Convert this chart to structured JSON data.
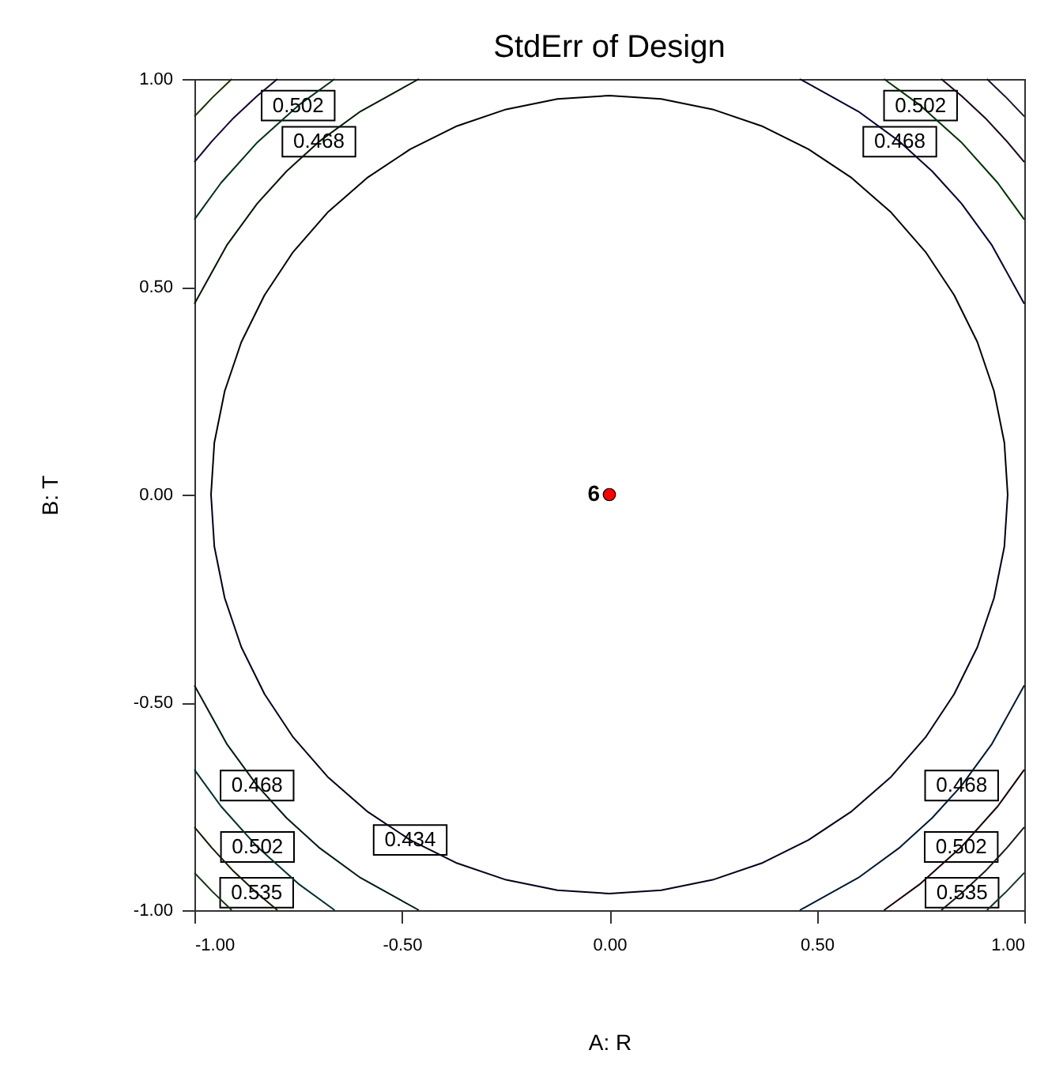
{
  "chart_data": {
    "type": "line",
    "title": "StdErr of Design",
    "xlabel": "A: R",
    "ylabel": "B: T",
    "xlim": [
      -1,
      1
    ],
    "ylim": [
      -1,
      1
    ],
    "xticks": [
      {
        "value": -1,
        "label": "-1.00"
      },
      {
        "value": -0.5,
        "label": "-0.50"
      },
      {
        "value": 0,
        "label": "0.00"
      },
      {
        "value": 0.5,
        "label": "0.50"
      },
      {
        "value": 1,
        "label": "1.00"
      }
    ],
    "yticks": [
      {
        "value": -1,
        "label": "-1.00"
      },
      {
        "value": -0.5,
        "label": "-0.50"
      },
      {
        "value": 0,
        "label": "0.00"
      },
      {
        "value": 0.5,
        "label": "0.50"
      },
      {
        "value": 1,
        "label": "1.00"
      }
    ],
    "line_style": "solid",
    "series": [
      {
        "type": "line",
        "color": "#000000",
        "x": [
          0.96,
          0.952,
          0.927,
          0.887,
          0.831,
          0.762,
          0.679,
          0.584,
          0.48,
          0.367,
          0.249,
          0.125,
          0,
          -0.125,
          -0.249,
          -0.367,
          -0.48,
          -0.584,
          -0.679,
          -0.762,
          -0.831,
          -0.887,
          -0.927,
          -0.952,
          -0.96
        ],
        "values": [
          0,
          0.125,
          0.249,
          0.367,
          0.48,
          0.584,
          0.679,
          0.762,
          0.831,
          0.887,
          0.927,
          0.952,
          0.96,
          0.952,
          0.927,
          0.887,
          0.831,
          0.762,
          0.679,
          0.584,
          0.48,
          0.367,
          0.249,
          0.125,
          0
        ]
      },
      {
        "type": "line",
        "color": "#000018",
        "x": [
          -0.96,
          -0.952,
          -0.927,
          -0.887,
          -0.831,
          -0.762,
          -0.679,
          -0.584,
          -0.48,
          -0.367,
          -0.249,
          -0.125,
          0,
          0.125,
          0.249,
          0.367,
          0.48,
          0.584,
          0.679,
          0.762,
          0.831,
          0.887,
          0.927,
          0.952,
          0.96
        ],
        "values": [
          0,
          -0.125,
          -0.249,
          -0.367,
          -0.48,
          -0.584,
          -0.679,
          -0.762,
          -0.831,
          -0.887,
          -0.927,
          -0.952,
          -0.96,
          -0.952,
          -0.927,
          -0.887,
          -0.831,
          -0.762,
          -0.679,
          -0.584,
          -0.48,
          -0.367,
          -0.249,
          -0.125,
          0
        ]
      },
      {
        "type": "line",
        "color": "#000030",
        "x": [
          0.459,
          0.6,
          0.7,
          0.778,
          0.849,
          0.922,
          1
        ],
        "values": [
          1,
          0.922,
          0.849,
          0.778,
          0.7,
          0.6,
          0.459
        ]
      },
      {
        "type": "line",
        "color": "#001800",
        "x": [
          -0.459,
          -0.6,
          -0.7,
          -0.778,
          -0.849,
          -0.922,
          -1
        ],
        "values": [
          1,
          0.922,
          0.849,
          0.778,
          0.7,
          0.6,
          0.459
        ]
      },
      {
        "type": "line",
        "color": "#001818",
        "x": [
          -0.459,
          -0.6,
          -0.7,
          -0.778,
          -0.849,
          -0.922,
          -1
        ],
        "values": [
          -1,
          -0.922,
          -0.849,
          -0.778,
          -0.7,
          -0.6,
          -0.459
        ]
      },
      {
        "type": "line",
        "color": "#001830",
        "x": [
          0.459,
          0.6,
          0.7,
          0.778,
          0.849,
          0.922,
          1
        ],
        "values": [
          -1,
          -0.922,
          -0.849,
          -0.778,
          -0.7,
          -0.6,
          -0.459
        ]
      },
      {
        "type": "line",
        "color": "#003000",
        "x": [
          0.662,
          0.75,
          0.848,
          0.936,
          1
        ],
        "values": [
          1,
          0.936,
          0.848,
          0.75,
          0.662
        ]
      },
      {
        "type": "line",
        "color": "#003018",
        "x": [
          -0.662,
          -0.75,
          -0.848,
          -0.936,
          -1
        ],
        "values": [
          1,
          0.936,
          0.848,
          0.75,
          0.662
        ]
      },
      {
        "type": "line",
        "color": "#003030",
        "x": [
          -0.662,
          -0.75,
          -0.848,
          -0.936,
          -1
        ],
        "values": [
          -1,
          -0.936,
          -0.848,
          -0.75,
          -0.662
        ]
      },
      {
        "type": "line",
        "color": "#180000",
        "x": [
          0.662,
          0.75,
          0.848,
          0.936,
          1
        ],
        "values": [
          -1,
          -0.936,
          -0.848,
          -0.75,
          -0.662
        ]
      },
      {
        "type": "line",
        "color": "#180018",
        "x": [
          0.8,
          0.85,
          0.906,
          0.958,
          1
        ],
        "values": [
          1,
          0.958,
          0.906,
          0.85,
          0.8
        ]
      },
      {
        "type": "line",
        "color": "#180030",
        "x": [
          -0.8,
          -0.85,
          -0.906,
          -0.958,
          -1
        ],
        "values": [
          1,
          0.958,
          0.906,
          0.85,
          0.8
        ]
      },
      {
        "type": "line",
        "color": "#181800",
        "x": [
          -0.8,
          -0.85,
          -0.906,
          -0.958,
          -1
        ],
        "values": [
          -1,
          -0.958,
          -0.906,
          -0.85,
          -0.8
        ]
      },
      {
        "type": "line",
        "color": "#181818",
        "x": [
          0.8,
          0.85,
          0.906,
          0.958,
          1
        ],
        "values": [
          -1,
          -0.958,
          -0.906,
          -0.85,
          -0.8
        ]
      },
      {
        "type": "line",
        "color": "#181830",
        "x": [
          0.91,
          0.956,
          1
        ],
        "values": [
          1,
          0.956,
          0.91
        ]
      },
      {
        "type": "line",
        "color": "#183000",
        "x": [
          -0.91,
          -0.956,
          -1
        ],
        "values": [
          1,
          0.956,
          0.91
        ]
      },
      {
        "type": "line",
        "color": "#183018",
        "x": [
          -0.91,
          -0.956,
          -1
        ],
        "values": [
          -1,
          -0.956,
          -0.91
        ]
      },
      {
        "type": "line",
        "color": "#183030",
        "x": [
          0.91,
          0.956,
          1
        ],
        "values": [
          -1,
          -0.956,
          -0.91
        ]
      },
      {
        "type": "scatter",
        "color": "#ff0000",
        "marker": "circle",
        "x": [
          0
        ],
        "values": [
          0
        ]
      }
    ],
    "annotations": [
      {
        "text": "0.502",
        "x": -0.75,
        "y": 0.936
      },
      {
        "text": "0.468",
        "x": -0.7,
        "y": 0.849
      },
      {
        "text": "0.502",
        "x": 0.75,
        "y": 0.936
      },
      {
        "text": "0.468",
        "x": 0.7,
        "y": 0.849
      },
      {
        "text": "0.468",
        "x": -0.849,
        "y": -0.7
      },
      {
        "text": "0.502",
        "x": -0.848,
        "y": -0.848
      },
      {
        "text": "0.535",
        "x": -0.85,
        "y": -0.958
      },
      {
        "text": "0.468",
        "x": 0.849,
        "y": -0.7
      },
      {
        "text": "0.502",
        "x": 0.848,
        "y": -0.848
      },
      {
        "text": "0.535",
        "x": 0.85,
        "y": -0.958
      },
      {
        "text": "0.434",
        "x": -0.48,
        "y": -0.831
      },
      {
        "text": "6",
        "x": 0,
        "y": 0
      }
    ]
  }
}
